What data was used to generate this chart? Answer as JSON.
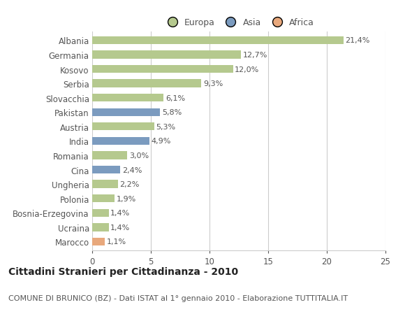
{
  "categories": [
    "Albania",
    "Germania",
    "Kosovo",
    "Serbia",
    "Slovacchia",
    "Pakistan",
    "Austria",
    "India",
    "Romania",
    "Cina",
    "Ungheria",
    "Polonia",
    "Bosnia-Erzegovina",
    "Ucraina",
    "Marocco"
  ],
  "values": [
    21.4,
    12.7,
    12.0,
    9.3,
    6.1,
    5.8,
    5.3,
    4.9,
    3.0,
    2.4,
    2.2,
    1.9,
    1.4,
    1.4,
    1.1
  ],
  "labels": [
    "21,4%",
    "12,7%",
    "12,0%",
    "9,3%",
    "6,1%",
    "5,8%",
    "5,3%",
    "4,9%",
    "3,0%",
    "2,4%",
    "2,2%",
    "1,9%",
    "1,4%",
    "1,4%",
    "1,1%"
  ],
  "continents": [
    "Europa",
    "Europa",
    "Europa",
    "Europa",
    "Europa",
    "Asia",
    "Europa",
    "Asia",
    "Europa",
    "Asia",
    "Europa",
    "Europa",
    "Europa",
    "Europa",
    "Africa"
  ],
  "colors": {
    "Europa": "#b5c98e",
    "Asia": "#7b9bbf",
    "Africa": "#e8a87c"
  },
  "xlim": [
    0,
    25
  ],
  "xticks": [
    0,
    5,
    10,
    15,
    20,
    25
  ],
  "title": "Cittadini Stranieri per Cittadinanza - 2010",
  "subtitle": "COMUNE DI BRUNICO (BZ) - Dati ISTAT al 1° gennaio 2010 - Elaborazione TUTTITALIA.IT",
  "background_color": "#ffffff",
  "bar_height": 0.55,
  "grid_color": "#cccccc",
  "title_fontsize": 10,
  "subtitle_fontsize": 8,
  "label_fontsize": 8,
  "tick_fontsize": 8.5,
  "text_color": "#555555"
}
